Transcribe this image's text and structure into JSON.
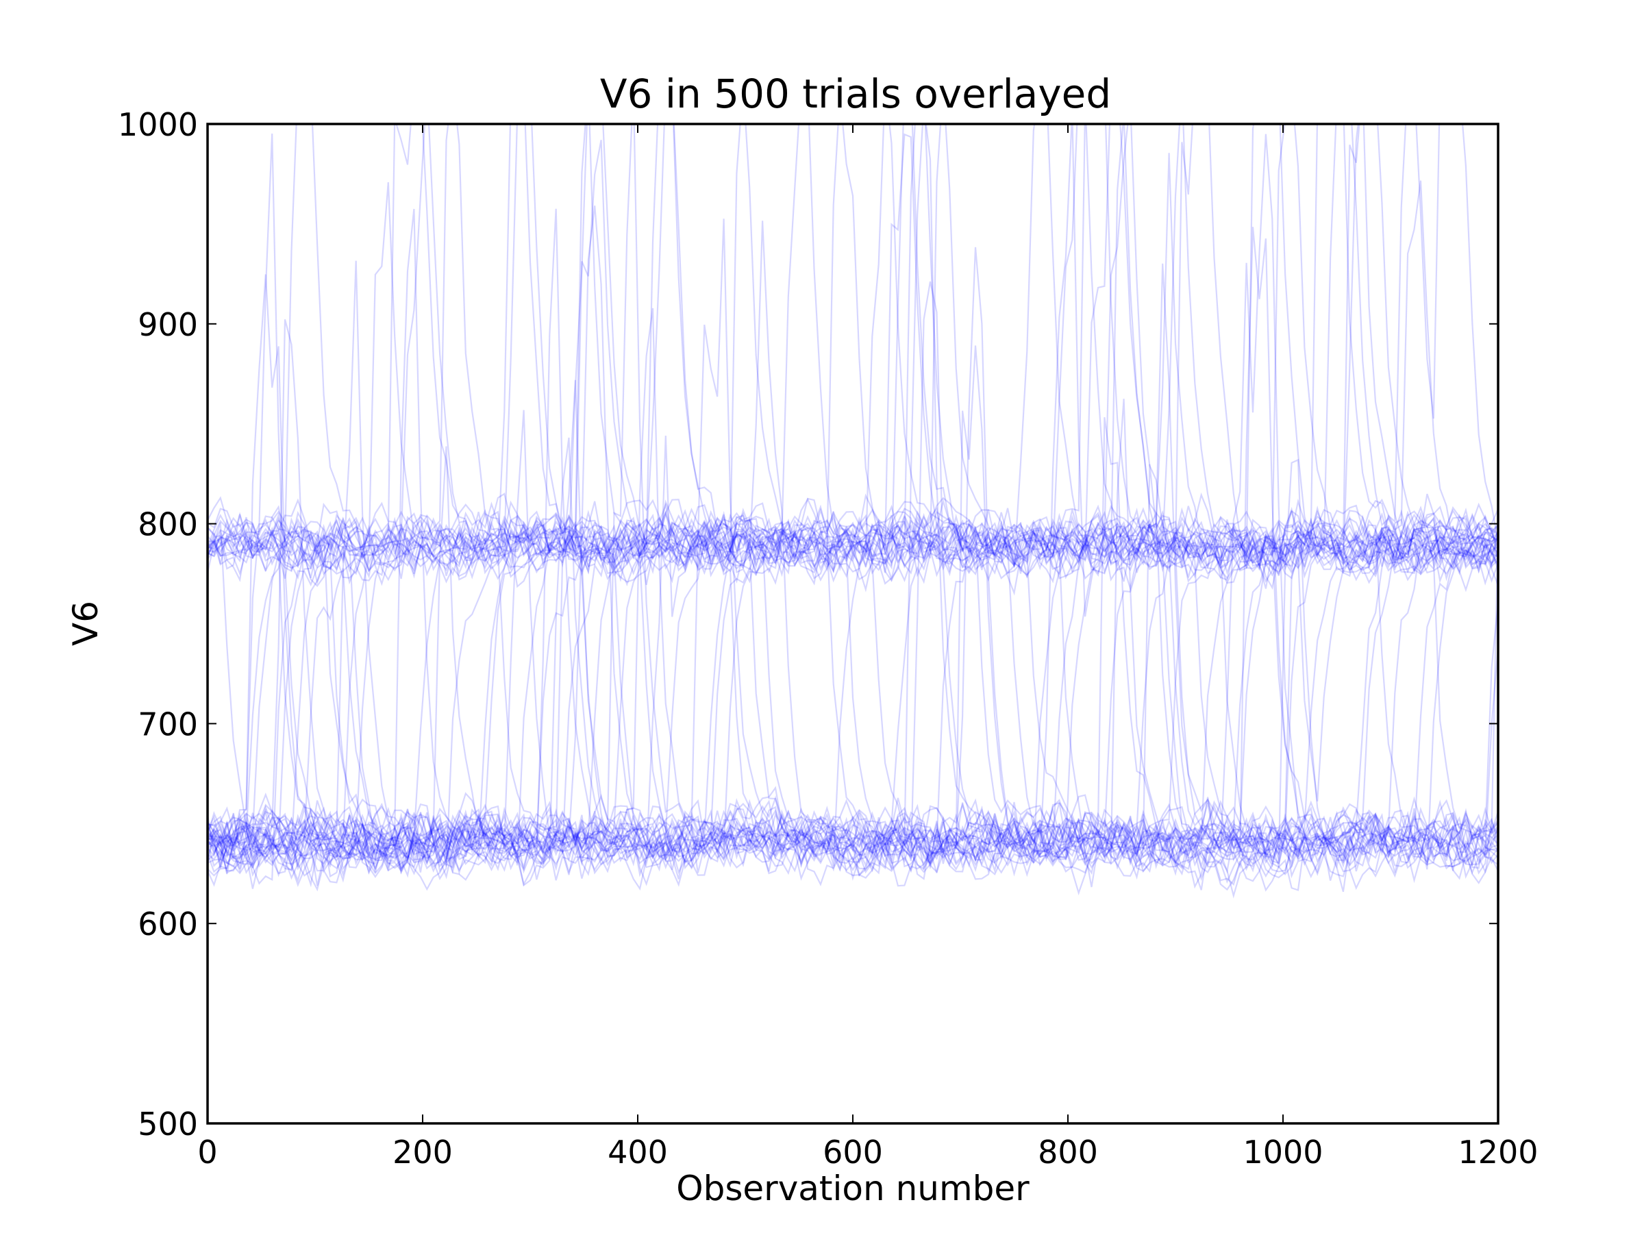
{
  "chart_data": {
    "type": "line",
    "title": "V6 in 500 trials overlayed",
    "xlabel": "Observation number",
    "ylabel": "V6",
    "xlim": [
      0,
      1200
    ],
    "ylim": [
      500,
      1000
    ],
    "x_ticks": [
      0,
      200,
      400,
      600,
      800,
      1000,
      1200
    ],
    "x_tick_labels": [
      "0",
      "200",
      "400",
      "600",
      "800",
      "1000",
      "1200"
    ],
    "y_ticks": [
      500,
      600,
      700,
      800,
      900,
      1000
    ],
    "y_tick_labels": [
      "500",
      "600",
      "700",
      "800",
      "900",
      "1000"
    ],
    "grid": false,
    "legend": "none",
    "series_color": "#0000ff",
    "series_alpha": 0.1,
    "n_trials": 500,
    "observations_per_trial": 1200,
    "band_levels": [
      {
        "level": 641,
        "spread": 9,
        "share": 0.62
      },
      {
        "level": 790,
        "spread": 9,
        "share": 0.38
      }
    ],
    "series": []
  }
}
